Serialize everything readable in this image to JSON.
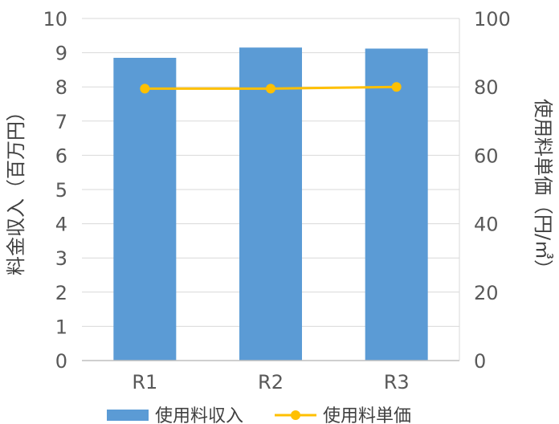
{
  "chart_data": {
    "type": "bar",
    "categories": [
      "R1",
      "R2",
      "R3"
    ],
    "series": [
      {
        "name": "使用料収入",
        "type": "bar",
        "axis": "left",
        "values": [
          8.85,
          9.15,
          9.12
        ],
        "color": "#5B9BD5"
      },
      {
        "name": "使用料単価",
        "type": "line",
        "axis": "right",
        "values": [
          79.5,
          79.5,
          80.0
        ],
        "color": "#FFC000"
      }
    ],
    "ylabel": "料金収入（百万円）",
    "ylabel_right": "使用料単価（円/㎥）",
    "ylim": [
      0,
      10
    ],
    "ylim_right": [
      0,
      100
    ],
    "yticks": [
      "0",
      "1",
      "2",
      "3",
      "4",
      "5",
      "6",
      "7",
      "8",
      "9",
      "10"
    ],
    "yticks_right": [
      "0",
      "20",
      "40",
      "60",
      "80",
      "100"
    ],
    "grid": true,
    "legend_position": "bottom"
  }
}
